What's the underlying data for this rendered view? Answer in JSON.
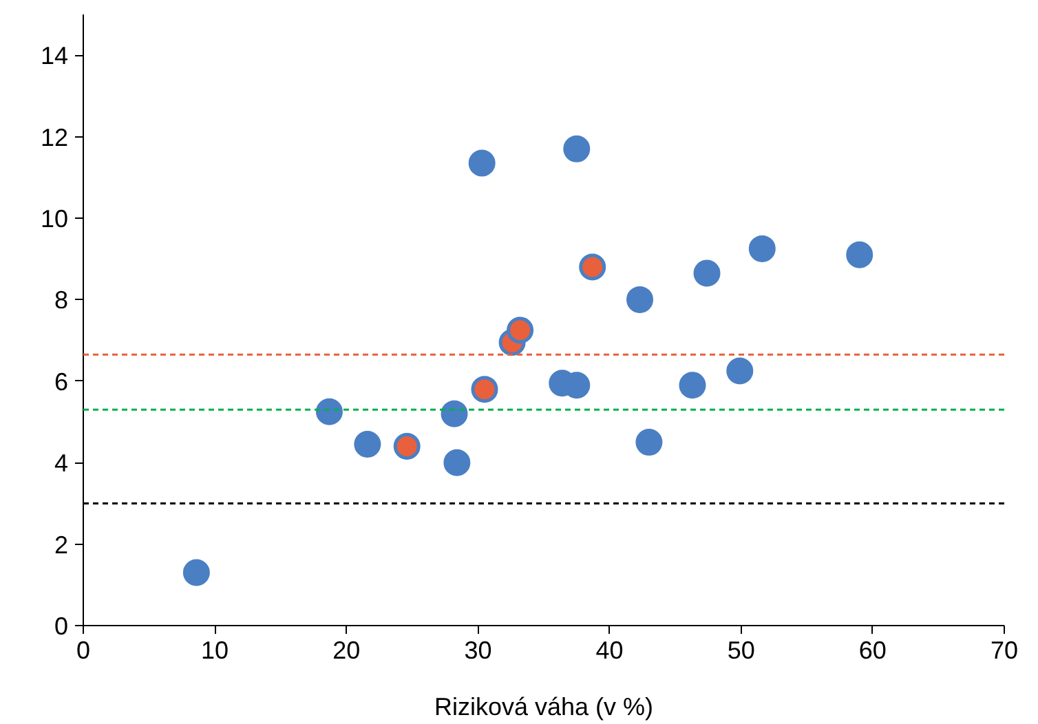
{
  "chart_data": {
    "type": "scatter",
    "xlabel": "Riziková váha (v %)",
    "xlim": [
      0,
      70
    ],
    "ylim": [
      0,
      15
    ],
    "xticks": [
      0,
      10,
      20,
      30,
      40,
      50,
      60,
      70
    ],
    "yticks": [
      0,
      2,
      4,
      6,
      8,
      10,
      12,
      14
    ],
    "grid": false,
    "marker": "circle",
    "series": [
      {
        "color": "#4a7fc4",
        "x": [
          8.6,
          18.7,
          21.6,
          28.2,
          28.4,
          30.3,
          37.5,
          42.3,
          47.4,
          51.6,
          59.0,
          36.4,
          37.5,
          46.3,
          49.9,
          43.0
        ],
        "values": [
          1.3,
          5.25,
          4.45,
          5.2,
          4.0,
          11.35,
          11.7,
          8.0,
          8.65,
          9.25,
          9.1,
          5.95,
          5.9,
          5.9,
          6.25,
          4.5
        ]
      },
      {
        "color": "#e8603c",
        "x": [
          24.6,
          30.5,
          32.6,
          33.2,
          38.7
        ],
        "values": [
          4.4,
          5.8,
          6.95,
          7.25,
          8.8
        ]
      }
    ],
    "ref_lines": [
      {
        "axis": "y",
        "value": 6.65,
        "color": "#e8603c",
        "line_style": "dashed"
      },
      {
        "axis": "y",
        "value": 5.3,
        "color": "#00b050",
        "line_style": "dashed"
      },
      {
        "axis": "y",
        "value": 3.0,
        "color": "#000000",
        "line_style": "dashed"
      }
    ]
  }
}
